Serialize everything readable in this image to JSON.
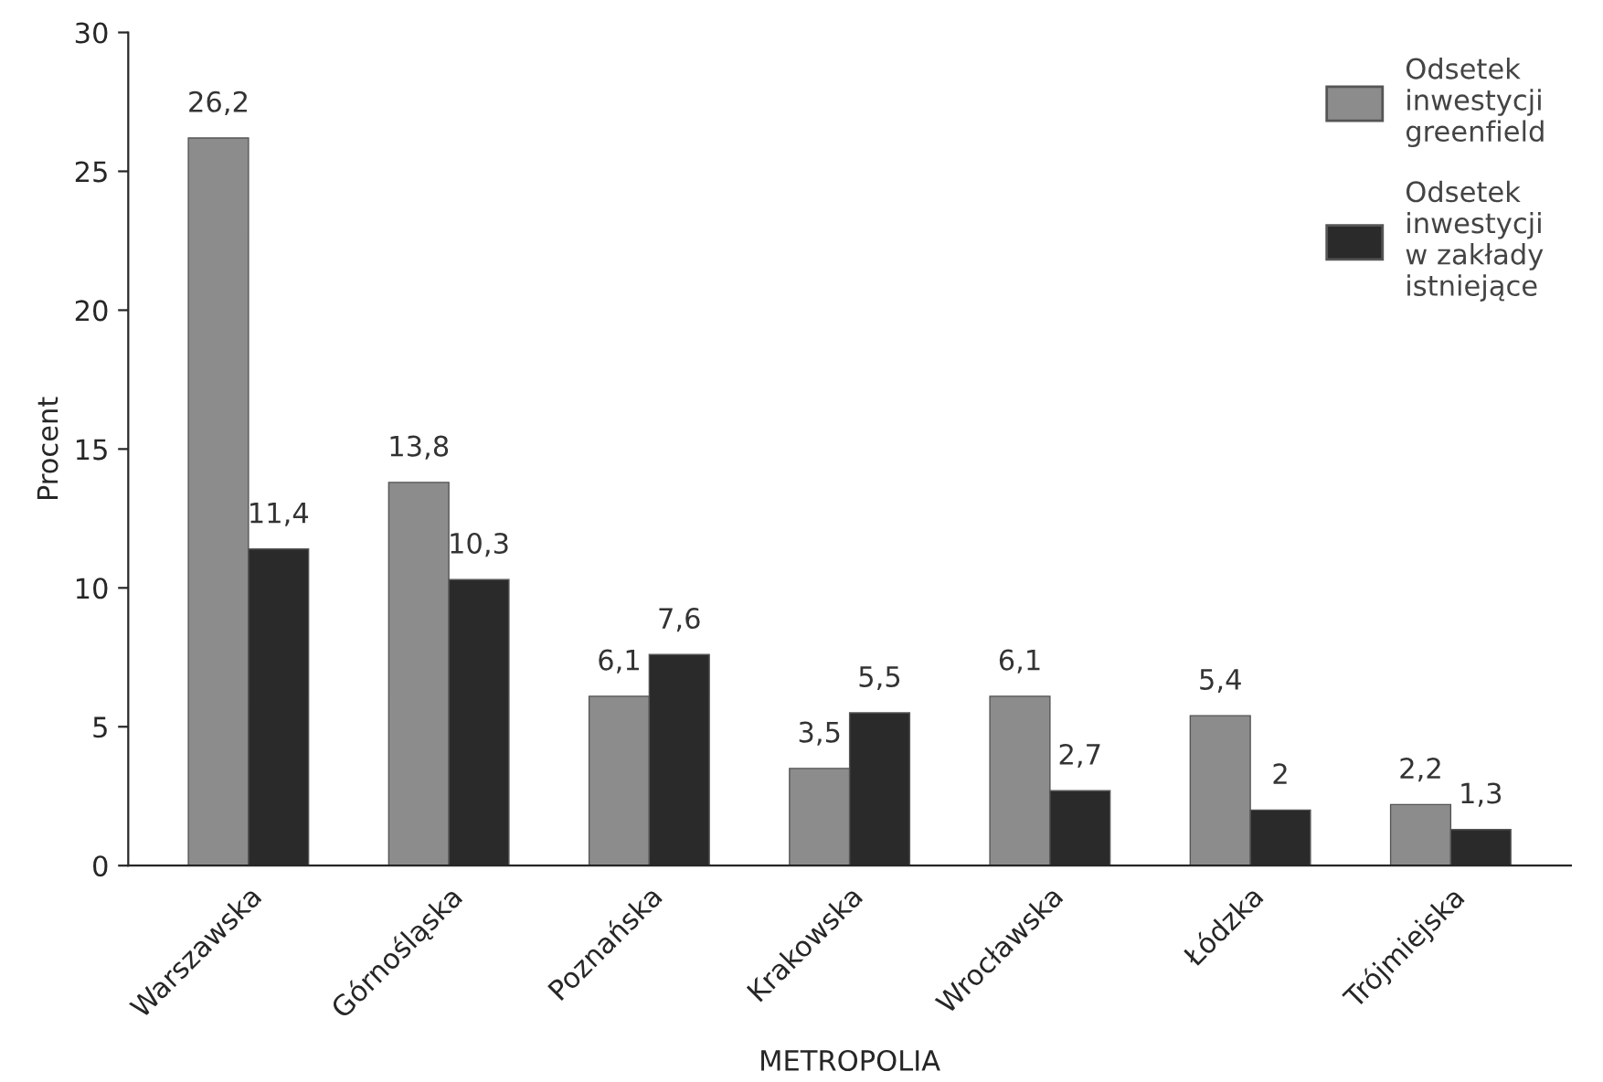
{
  "chart_data": {
    "type": "bar",
    "xlabel": "METROPOLIA",
    "ylabel": "Procent",
    "categories": [
      "Warszawska",
      "Górnośląska",
      "Poznańska",
      "Krakowska",
      "Wrocławska",
      "Łódzka",
      "Trójmiejska"
    ],
    "series": [
      {
        "name": "Odsetek\ninwestycji\ngreenfield",
        "color": "#8c8c8c",
        "values": [
          26.2,
          13.8,
          6.1,
          3.5,
          6.1,
          5.4,
          2.2
        ],
        "value_labels": [
          "26,2",
          "13,8",
          "6,1",
          "3,5",
          "6,1",
          "5,4",
          "2,2"
        ]
      },
      {
        "name": "Odsetek\ninwestycji\nw zakłady\nistniejące",
        "color": "#2a2a2a",
        "values": [
          11.4,
          10.3,
          7.6,
          5.5,
          2.7,
          2,
          1.3
        ],
        "value_labels": [
          "11,4",
          "10,3",
          "7,6",
          "5,5",
          "2,7",
          "2",
          "1,3"
        ]
      }
    ],
    "ylim": [
      0,
      30
    ],
    "yticks": [
      0,
      5,
      10,
      15,
      20,
      25,
      30
    ],
    "grid": false,
    "legend": "top right"
  }
}
